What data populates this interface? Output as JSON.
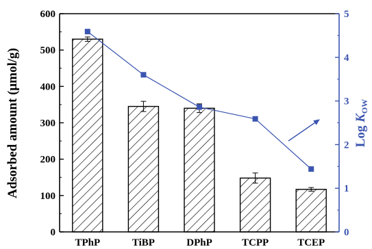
{
  "chart_data": {
    "type": "bar",
    "categories": [
      "TPhP",
      "TiBP",
      "DPhP",
      "TCPP",
      "TCEP"
    ],
    "series": [
      {
        "name": "Adsorbed amount",
        "type": "bar",
        "axis": "left",
        "values": [
          530,
          345,
          340,
          148,
          117
        ],
        "errors": [
          6,
          14,
          12,
          14,
          5
        ]
      },
      {
        "name": "Log KOW",
        "type": "line",
        "axis": "right",
        "values": [
          4.59,
          3.6,
          2.86,
          2.59,
          1.44
        ]
      }
    ],
    "y_left": {
      "label": "Adsorbed amount (μmol/g)",
      "lim": [
        0,
        600
      ],
      "ticks": [
        "0",
        "100",
        "200",
        "300",
        "400",
        "500",
        "600"
      ]
    },
    "y_right": {
      "label_main": "Log ",
      "label_italic": "K",
      "label_sub": "OW",
      "lim": [
        0,
        5
      ],
      "ticks": [
        "0",
        "1",
        "2",
        "3",
        "4",
        "5"
      ]
    },
    "colors": {
      "axis_left": "#000000",
      "axis_right": "#3b55b0",
      "line": "#3b55b0",
      "marker": "#3b55b0",
      "bar_hatch": "#000000"
    },
    "grid": false,
    "legend": "none",
    "arrow": "from the Log KOW line toward the right axis"
  }
}
